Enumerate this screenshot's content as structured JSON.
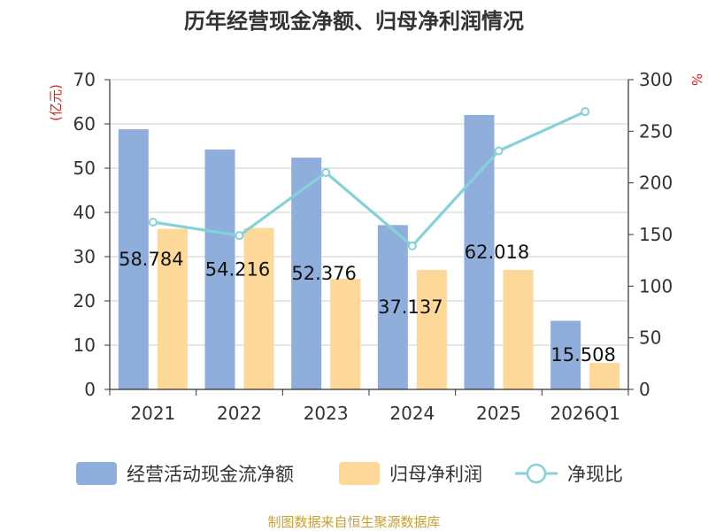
{
  "chart_data": {
    "type": "bar",
    "title": "历年经营现金净额、归母净利润情况",
    "categories": [
      "2021",
      "2022",
      "2023",
      "2024",
      "2025",
      "2026Q1"
    ],
    "left_axis": {
      "unit": "(亿元)",
      "ylim": [
        0,
        70
      ],
      "ticks": [
        0,
        10,
        20,
        30,
        40,
        50,
        60,
        70
      ]
    },
    "right_axis": {
      "unit": "%",
      "ylim": [
        0,
        300
      ],
      "ticks": [
        0,
        50,
        100,
        150,
        200,
        250,
        300
      ]
    },
    "series": [
      {
        "name": "经营活动现金流净额",
        "type": "bar",
        "axis": "left",
        "color": "#8FAEDC",
        "values": [
          58.784,
          54.216,
          52.376,
          37.137,
          62.018,
          15.508
        ],
        "labels": [
          "58.784",
          "54.216",
          "52.376",
          "37.137",
          "62.018",
          "15.508"
        ]
      },
      {
        "name": "归母净利润",
        "type": "bar",
        "axis": "left",
        "color": "#FDD898",
        "values": [
          36.3,
          36.5,
          25.0,
          27.0,
          27.0,
          6.0
        ]
      },
      {
        "name": "净现比",
        "type": "line",
        "axis": "right",
        "color": "#84D2D8",
        "values": [
          162,
          149,
          210,
          139,
          231,
          269
        ]
      }
    ],
    "grid": true,
    "legend_position": "bottom",
    "unit_color": "#E02020"
  },
  "source_text": "制图数据来自恒生聚源数据库",
  "source_color": "#C8A032"
}
